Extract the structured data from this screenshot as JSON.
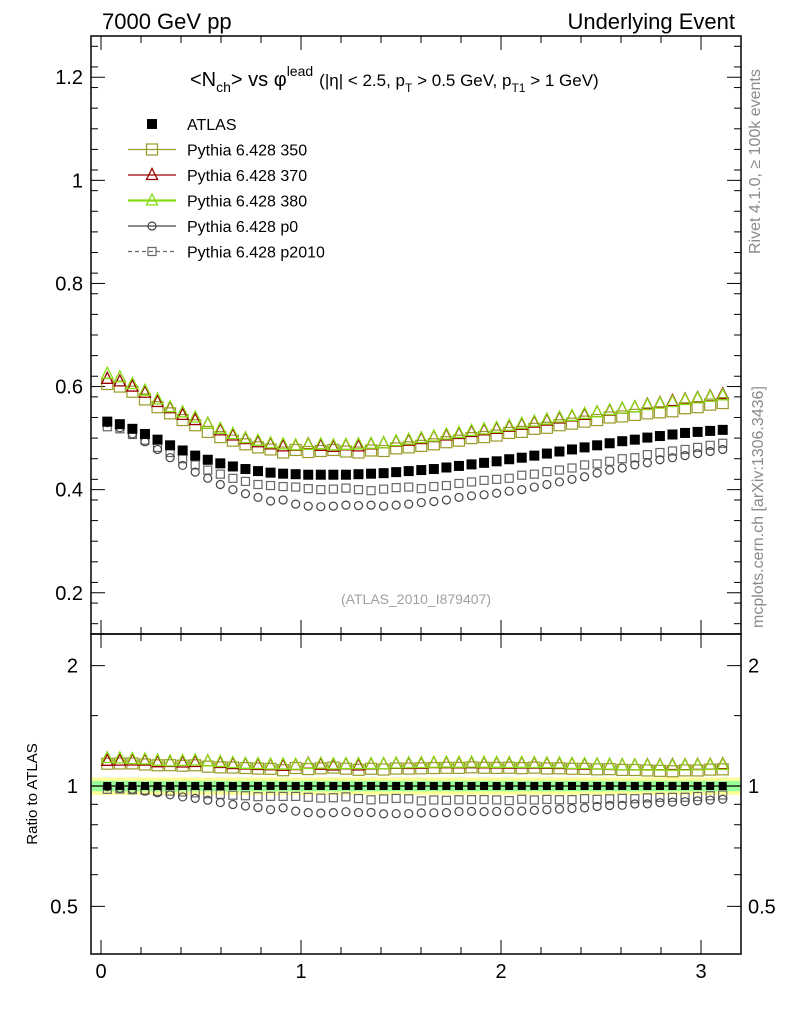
{
  "header": {
    "left": "7000 GeV pp",
    "right": "Underlying Event"
  },
  "side_labels": {
    "rivet": "Rivet 4.1.0, ≥ 100k events",
    "mcplots": "mcplots.cern.ch [arXiv:1306.3436]"
  },
  "analysis_tag": "(ATLAS_2010_I879407)",
  "title": {
    "main_1": "<N",
    "main_sub": "ch",
    "main_2": "> vs φ",
    "main_sup": "lead",
    "cuts_1": "(|η| < 2.5, p",
    "cuts_sub_t": "T",
    "cuts_2": " > 0.5 GeV, p",
    "cuts_sub_t1": "T1",
    "cuts_3": " > 1 GeV)"
  },
  "ratio_ylabel": "Ratio to ATLAS",
  "colors": {
    "atlas": "#000000",
    "p350": "#9a9a2a",
    "p370": "#990000",
    "p380": "#88dd11",
    "p0": "#444444",
    "p2010": "#666666",
    "band_yellow": "#ffff99",
    "band_green": "#99ff99"
  },
  "chart_data": {
    "type": "scatter",
    "x_start": 0.0314,
    "x_step": 0.0628,
    "n_points": 50,
    "main": {
      "ylim": [
        0.12,
        1.28
      ],
      "yticks": [
        0.2,
        0.4,
        0.6,
        0.8,
        1,
        1.2
      ],
      "ytick_labels": [
        "0.2",
        "0.4",
        "0.6",
        "0.8",
        "1",
        "1.2"
      ]
    },
    "ratio": {
      "ylim": [
        0.38,
        2.4
      ],
      "yticks": [
        0.5,
        1,
        2
      ],
      "ytick_labels": [
        "0.5",
        "1",
        "2"
      ],
      "band_yellow": [
        0.95,
        1.05
      ],
      "band_green": [
        0.97,
        1.03
      ]
    },
    "xlim": [
      -0.05,
      3.2
    ],
    "xticks": [
      0,
      1,
      2,
      3
    ],
    "xtick_labels": [
      "0",
      "1",
      "2",
      "3"
    ],
    "series": [
      {
        "name": "ATLAS",
        "key": "atlas",
        "style": "data",
        "values": [
          0.532,
          0.527,
          0.518,
          0.508,
          0.497,
          0.486,
          0.476,
          0.466,
          0.458,
          0.451,
          0.445,
          0.44,
          0.436,
          0.433,
          0.431,
          0.43,
          0.429,
          0.429,
          0.429,
          0.429,
          0.43,
          0.431,
          0.432,
          0.434,
          0.436,
          0.438,
          0.44,
          0.443,
          0.446,
          0.449,
          0.452,
          0.455,
          0.459,
          0.462,
          0.466,
          0.47,
          0.474,
          0.478,
          0.482,
          0.486,
          0.49,
          0.494,
          0.497,
          0.501,
          0.504,
          0.507,
          0.51,
          0.512,
          0.514,
          0.516
        ]
      },
      {
        "name": "Pythia 6.428 350",
        "key": "p350",
        "style": "square-open",
        "values": [
          0.605,
          0.6,
          0.59,
          0.575,
          0.56,
          0.548,
          0.535,
          0.525,
          0.512,
          0.502,
          0.495,
          0.488,
          0.482,
          0.478,
          0.472,
          0.477,
          0.473,
          0.475,
          0.477,
          0.474,
          0.472,
          0.476,
          0.475,
          0.48,
          0.482,
          0.485,
          0.488,
          0.492,
          0.495,
          0.5,
          0.502,
          0.505,
          0.51,
          0.512,
          0.518,
          0.52,
          0.525,
          0.528,
          0.532,
          0.535,
          0.54,
          0.542,
          0.545,
          0.548,
          0.55,
          0.552,
          0.558,
          0.56,
          0.565,
          0.568
        ]
      },
      {
        "name": "Pythia 6.428 370",
        "key": "p370",
        "style": "triangle-open",
        "values": [
          0.615,
          0.61,
          0.6,
          0.588,
          0.57,
          0.558,
          0.545,
          0.535,
          0.528,
          0.515,
          0.505,
          0.498,
          0.492,
          0.488,
          0.484,
          0.485,
          0.488,
          0.485,
          0.483,
          0.486,
          0.484,
          0.488,
          0.49,
          0.493,
          0.495,
          0.498,
          0.502,
          0.505,
          0.508,
          0.512,
          0.515,
          0.518,
          0.522,
          0.526,
          0.53,
          0.534,
          0.538,
          0.542,
          0.545,
          0.55,
          0.553,
          0.557,
          0.56,
          0.565,
          0.568,
          0.572,
          0.575,
          0.578,
          0.581,
          0.585
        ]
      },
      {
        "name": "Pythia 6.428 380",
        "key": "p380",
        "style": "triangle-open",
        "values": [
          0.625,
          0.618,
          0.605,
          0.592,
          0.575,
          0.56,
          0.55,
          0.54,
          0.528,
          0.518,
          0.508,
          0.5,
          0.495,
          0.49,
          0.488,
          0.486,
          0.487,
          0.488,
          0.486,
          0.487,
          0.488,
          0.489,
          0.49,
          0.494,
          0.497,
          0.5,
          0.503,
          0.507,
          0.51,
          0.514,
          0.517,
          0.52,
          0.524,
          0.528,
          0.532,
          0.536,
          0.54,
          0.543,
          0.547,
          0.55,
          0.554,
          0.557,
          0.56,
          0.564,
          0.567,
          0.57,
          0.574,
          0.577,
          0.58,
          0.583
        ]
      },
      {
        "name": "Pythia 6.428 p0",
        "key": "p0",
        "style": "circle-open",
        "values": [
          0.53,
          0.52,
          0.508,
          0.493,
          0.478,
          0.462,
          0.447,
          0.434,
          0.422,
          0.41,
          0.4,
          0.392,
          0.385,
          0.378,
          0.38,
          0.372,
          0.368,
          0.367,
          0.368,
          0.37,
          0.369,
          0.37,
          0.368,
          0.37,
          0.372,
          0.375,
          0.377,
          0.38,
          0.385,
          0.388,
          0.39,
          0.393,
          0.397,
          0.4,
          0.405,
          0.41,
          0.415,
          0.42,
          0.425,
          0.432,
          0.438,
          0.442,
          0.448,
          0.452,
          0.458,
          0.462,
          0.466,
          0.47,
          0.474,
          0.478
        ]
      },
      {
        "name": "Pythia 6.428 p2010",
        "key": "p2010",
        "style": "square-open-dashed",
        "values": [
          0.522,
          0.518,
          0.507,
          0.496,
          0.482,
          0.472,
          0.46,
          0.448,
          0.438,
          0.43,
          0.422,
          0.416,
          0.41,
          0.408,
          0.406,
          0.405,
          0.402,
          0.4,
          0.401,
          0.403,
          0.4,
          0.398,
          0.401,
          0.404,
          0.405,
          0.402,
          0.406,
          0.408,
          0.412,
          0.415,
          0.418,
          0.42,
          0.422,
          0.428,
          0.43,
          0.435,
          0.438,
          0.442,
          0.448,
          0.45,
          0.455,
          0.46,
          0.462,
          0.468,
          0.472,
          0.475,
          0.478,
          0.482,
          0.486,
          0.49
        ]
      }
    ]
  }
}
